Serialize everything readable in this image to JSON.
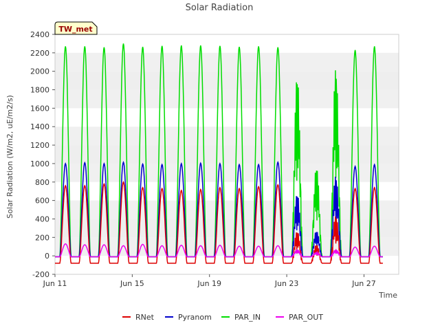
{
  "chart_data": {
    "type": "line",
    "title": "Solar Radiation",
    "xlabel": "Time",
    "ylabel": "Solar Radiation (W/m2, uE/m2/s)",
    "badge": "TW_met",
    "ylim": [
      -200,
      2400
    ],
    "yticks": [
      -200,
      0,
      200,
      400,
      600,
      800,
      1000,
      1200,
      1400,
      1600,
      1800,
      2000,
      2200,
      2400
    ],
    "xlim_days": [
      11,
      28.8
    ],
    "xticks": [
      {
        "day": 11,
        "label": "Jun 11"
      },
      {
        "day": 15,
        "label": "Jun 15"
      },
      {
        "day": 19,
        "label": "Jun 19"
      },
      {
        "day": 23,
        "label": "Jun 23"
      },
      {
        "day": 27,
        "label": "Jun 27"
      }
    ],
    "grid": "horizontal bands",
    "legend_position": "bottom",
    "day_start": 11,
    "series": [
      {
        "name": "RNet",
        "color": "#dd0000",
        "night": -80,
        "peaks": [
          760,
          760,
          780,
          800,
          740,
          730,
          710,
          720,
          740,
          730,
          750,
          770,
          280,
          130,
          450,
          730,
          740
        ]
      },
      {
        "name": "Pyranom",
        "color": "#0000cc",
        "night": -10,
        "peaks": [
          1000,
          1010,
          1000,
          1015,
          995,
          990,
          1000,
          1005,
          1000,
          990,
          990,
          1015,
          700,
          280,
          900,
          970,
          990
        ]
      },
      {
        "name": "PAR_IN",
        "color": "#00dd00",
        "night": -10,
        "peaks": [
          2270,
          2270,
          2260,
          2300,
          2265,
          2275,
          2280,
          2280,
          2275,
          2265,
          2270,
          2260,
          2030,
          1000,
          2110,
          2230,
          2270
        ]
      },
      {
        "name": "PAR_OUT",
        "color": "#ee00ee",
        "night": -10,
        "peaks": [
          130,
          120,
          120,
          110,
          125,
          110,
          115,
          110,
          115,
          105,
          105,
          110,
          70,
          40,
          70,
          95,
          105
        ]
      }
    ]
  }
}
